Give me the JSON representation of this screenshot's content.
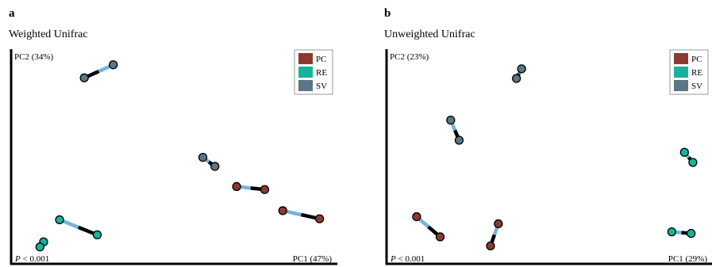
{
  "chart_data": [
    {
      "type": "scatter",
      "panel_label": "a",
      "title": "Weighted Unifrac",
      "xlabel": "PC1 (47%)",
      "ylabel": "PC2 (34%)",
      "annotation_prefix": "P",
      "annotation_suffix": " < 0.001",
      "legend": [
        "PC",
        "RE",
        "SV"
      ],
      "legend_placement": "top-right",
      "xlim": [
        0,
        1
      ],
      "ylim": [
        0,
        1
      ],
      "pairs": [
        {
          "group": "SV",
          "p1": [
            0.286,
            0.93
          ],
          "p2": [
            0.19,
            0.865
          ]
        },
        {
          "group": "SV",
          "p1": [
            0.583,
            0.47
          ],
          "p2": [
            0.623,
            0.425
          ]
        },
        {
          "group": "PC",
          "p1": [
            0.695,
            0.325
          ],
          "p2": [
            0.788,
            0.31
          ]
        },
        {
          "group": "PC",
          "p1": [
            0.848,
            0.205
          ],
          "p2": [
            0.97,
            0.165
          ]
        },
        {
          "group": "RE",
          "p1": [
            0.108,
            0.16
          ],
          "p2": [
            0.233,
            0.085
          ]
        },
        {
          "group": "RE",
          "p1": [
            0.055,
            0.05
          ],
          "p2": [
            0.043,
            0.025
          ]
        }
      ]
    },
    {
      "type": "scatter",
      "panel_label": "b",
      "title": "Unweighted Unifrac",
      "xlabel": "PC1 (29%)",
      "ylabel": "PC2 (23%)",
      "annotation_prefix": "P",
      "annotation_suffix": " < 0.001",
      "legend": [
        "PC",
        "RE",
        "SV"
      ],
      "legend_placement": "top-right",
      "xlim": [
        0,
        1
      ],
      "ylim": [
        0,
        1
      ],
      "pairs": [
        {
          "group": "SV",
          "p1": [
            0.395,
            0.91
          ],
          "p2": [
            0.378,
            0.862
          ]
        },
        {
          "group": "SV",
          "p1": [
            0.16,
            0.655
          ],
          "p2": [
            0.188,
            0.555
          ]
        },
        {
          "group": "RE",
          "p1": [
            0.935,
            0.495
          ],
          "p2": [
            0.963,
            0.445
          ]
        },
        {
          "group": "PC",
          "p1": [
            0.047,
            0.175
          ],
          "p2": [
            0.125,
            0.075
          ]
        },
        {
          "group": "PC",
          "p1": [
            0.318,
            0.14
          ],
          "p2": [
            0.292,
            0.03
          ]
        },
        {
          "group": "RE",
          "p1": [
            0.893,
            0.1
          ],
          "p2": [
            0.957,
            0.092
          ]
        }
      ]
    }
  ],
  "colors": {
    "PC": "#8b3a2f",
    "RE": "#18b39a",
    "SV": "#5b7684",
    "line_dark": "#000000",
    "line_light": "#74b3dc",
    "axis": "#000000",
    "legend_border": "#999999"
  }
}
